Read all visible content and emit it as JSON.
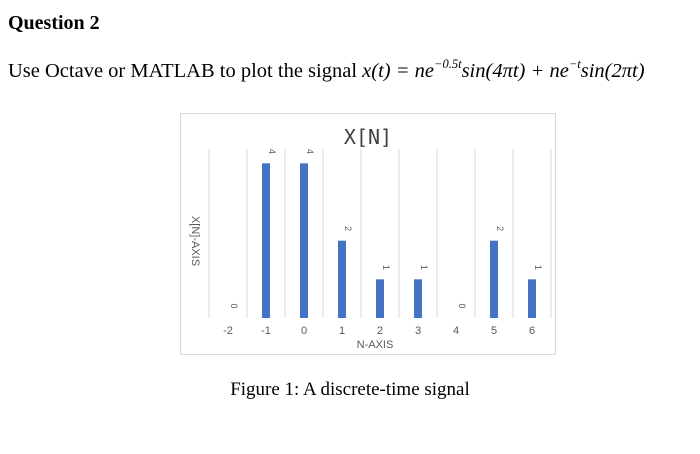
{
  "question": {
    "heading": "Question 2",
    "prompt_text": "Use Octave or MATLAB to plot the signal",
    "formula_lhs": "x(t) = ",
    "term1_base": "ne",
    "term1_exp": "−0.5t",
    "term1_rest": "sin(4πt) + ",
    "term2_base": "ne",
    "term2_exp": "−t",
    "term2_rest": "sin(2πt)"
  },
  "figure_caption": "Figure 1: A discrete-time signal",
  "colors": {
    "bar": "#4472c4",
    "grid": "#d9d9d9",
    "text": "#595959",
    "title": "#404040"
  },
  "chart_data": {
    "type": "bar",
    "title": "X[N]",
    "xlabel": "N-AXIS",
    "ylabel": "X[N]-AXIS",
    "categories": [
      "-2",
      "-1",
      "0",
      "1",
      "2",
      "3",
      "4",
      "5",
      "6"
    ],
    "values": [
      0,
      4,
      4,
      2,
      1,
      1,
      0,
      2,
      1
    ],
    "data_labels": [
      "0",
      "4",
      "4",
      "2",
      "1",
      "1",
      "0",
      "2",
      "1"
    ],
    "ylim": [
      0,
      4.5
    ],
    "grid": "vertical",
    "legend": "none"
  }
}
